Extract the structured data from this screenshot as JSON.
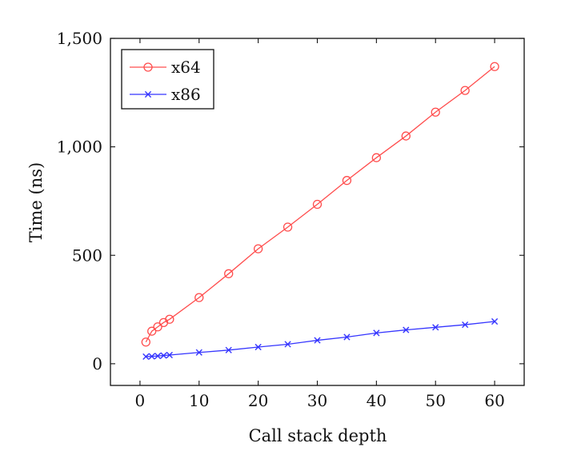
{
  "chart_data": {
    "type": "line",
    "title": "",
    "xlabel": "Call stack depth",
    "ylabel": "Time (ns)",
    "xlim": [
      -5,
      65
    ],
    "ylim": [
      -100,
      1500
    ],
    "xticks": [
      0,
      10,
      20,
      30,
      40,
      50,
      60
    ],
    "yticks": [
      0,
      500,
      1000,
      1500
    ],
    "xtick_labels": [
      "0",
      "10",
      "20",
      "30",
      "40",
      "50",
      "60"
    ],
    "ytick_labels": [
      "0",
      "500",
      "1,000",
      "1,500"
    ],
    "grid": false,
    "legend_position": "top-left",
    "x": [
      1,
      2,
      3,
      4,
      5,
      10,
      15,
      20,
      25,
      30,
      35,
      40,
      45,
      50,
      55,
      60
    ],
    "series": [
      {
        "name": "x64",
        "color": "#ff4d4d",
        "marker": "circle",
        "values": [
          100,
          150,
          170,
          190,
          205,
          305,
          415,
          530,
          630,
          735,
          845,
          950,
          1050,
          1160,
          1260,
          1370
        ]
      },
      {
        "name": "x86",
        "color": "#3535ff",
        "marker": "cross",
        "values": [
          33,
          34,
          36,
          38,
          40,
          52,
          63,
          77,
          90,
          108,
          123,
          142,
          156,
          168,
          180,
          195
        ]
      }
    ]
  }
}
